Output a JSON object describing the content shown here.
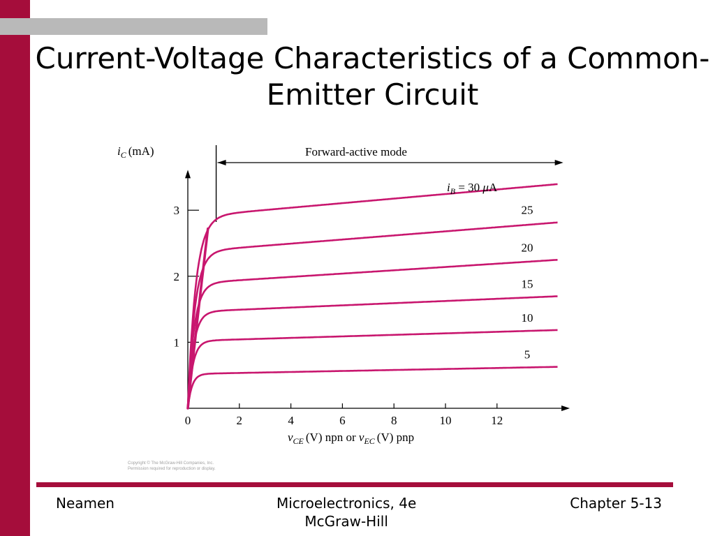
{
  "slide": {
    "title": "Current-Voltage Characteristics of a Common-Emitter Circuit",
    "accent_color": "#a50d3b",
    "gray_bar_color": "#b9b9b9",
    "copyright": [
      "Copyright © The McGraw-Hill Companies, Inc.",
      "Permission required for reproduction or display."
    ],
    "footer": {
      "left": "Neamen",
      "center_line1": "Microelectronics, 4e",
      "center_line2": "McGraw-Hill",
      "right": "Chapter 5-13"
    }
  },
  "chart_data": {
    "type": "line",
    "title": "",
    "ylabel_symbol": "i",
    "ylabel_sub": "C",
    "ylabel_unit": "(mA)",
    "xlabel": {
      "v1": "v",
      "sub1": "CE",
      "mid": "(V) npn or ",
      "v2": "v",
      "sub2": "EC",
      "end": "(V) pnp"
    },
    "xlim": [
      0,
      14.5
    ],
    "ylim": [
      0,
      3.4
    ],
    "x_ticks": [
      0,
      2,
      4,
      6,
      8,
      10,
      12
    ],
    "y_ticks": [
      1,
      2,
      3
    ],
    "line_color": "#c8166e",
    "region_label": "Forward-active mode",
    "region_start_x": 1.1,
    "series": [
      {
        "name": "i_B = 30 μA",
        "label": "30",
        "isat": 2.9,
        "slope": 0.0345
      },
      {
        "name": "25",
        "label": "25",
        "isat": 2.37,
        "slope": 0.031
      },
      {
        "name": "20",
        "label": "20",
        "isat": 1.89,
        "slope": 0.025
      },
      {
        "name": "15",
        "label": "15",
        "isat": 1.46,
        "slope": 0.0165
      },
      {
        "name": "10",
        "label": "10",
        "isat": 1.02,
        "slope": 0.0115
      },
      {
        "name": "5",
        "label": "5",
        "isat": 0.52,
        "slope": 0.0075
      }
    ],
    "ib_label": {
      "symbol": "i",
      "sub": "B",
      "rest": " = 30 ",
      "unit_mu": "μ",
      "unit": "A"
    }
  }
}
